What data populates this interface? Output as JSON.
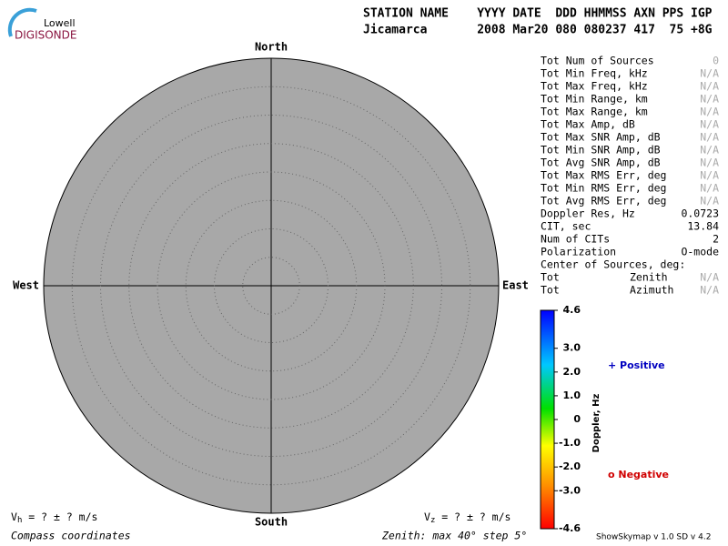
{
  "logo": {
    "top": "Lowell",
    "bottom": "DIGISONDE"
  },
  "header": {
    "line1": "STATION NAME    YYYY DATE  DDD HHMMSS AXN PPS IGP",
    "line2": "Jicamarca       2008 Mar20 080 080237 417  75 +8G"
  },
  "compass": {
    "north": "North",
    "south": "South",
    "east": "East",
    "west": "West"
  },
  "stats": [
    {
      "label": "Tot Num of Sources",
      "value": "0"
    },
    {
      "label": "Tot Min Freq, kHz",
      "value": "N/A"
    },
    {
      "label": "Tot Max Freq, kHz",
      "value": "N/A"
    },
    {
      "label": "Tot Min Range, km",
      "value": "N/A"
    },
    {
      "label": "Tot Max Range, km",
      "value": "N/A"
    },
    {
      "label": "Tot Max Amp, dB",
      "value": "N/A"
    },
    {
      "label": "Tot Max SNR Amp, dB",
      "value": "N/A"
    },
    {
      "label": "Tot Min SNR Amp, dB",
      "value": "N/A"
    },
    {
      "label": "Tot Avg SNR Amp, dB",
      "value": "N/A"
    },
    {
      "label": "Tot Max RMS Err, deg",
      "value": "N/A"
    },
    {
      "label": "Tot Min RMS Err, deg",
      "value": "N/A"
    },
    {
      "label": "Tot Avg RMS Err, deg",
      "value": "N/A"
    },
    {
      "label": "Doppler Res, Hz",
      "value": "0.0723"
    },
    {
      "label": "CIT, sec",
      "value": "13.84"
    },
    {
      "label": "Num of CITs",
      "value": "2"
    },
    {
      "label": "Polarization",
      "value": "O-mode"
    },
    {
      "label": "Center of Sources, deg:"
    },
    {
      "label": "Tot",
      "sublabel": "Zenith",
      "value": "N/A"
    },
    {
      "label": "Tot",
      "sublabel": "Azimuth",
      "value": "N/A"
    }
  ],
  "colorbar": {
    "title": "Doppler, Hz",
    "range": [
      -4.6,
      4.6
    ],
    "ticks": [
      4.6,
      {
        "value": 3,
        "label": "3.0"
      },
      {
        "value": 2,
        "label": "2.0"
      },
      {
        "value": 1,
        "label": "1.0"
      },
      0,
      {
        "value": -1,
        "label": "-1.0"
      },
      {
        "value": -2,
        "label": "-2.0"
      },
      {
        "value": -3,
        "label": "-3.0"
      },
      -4.6
    ]
  },
  "legend": {
    "positive": "+ Positive",
    "negative": "o Negative"
  },
  "footer": {
    "vh_v": "V",
    "vh_sub": "h",
    "vh_rest": " =  ? ±  ? m/s",
    "vz_v": "V",
    "vz_sub": "z",
    "vz_rest": " =  ? ±  ? m/s",
    "coords": "Compass coordinates",
    "zenith": "Zenith: max 40°  step 5°",
    "version": "ShowSkymap v 1.0   SD v 4.2"
  }
}
